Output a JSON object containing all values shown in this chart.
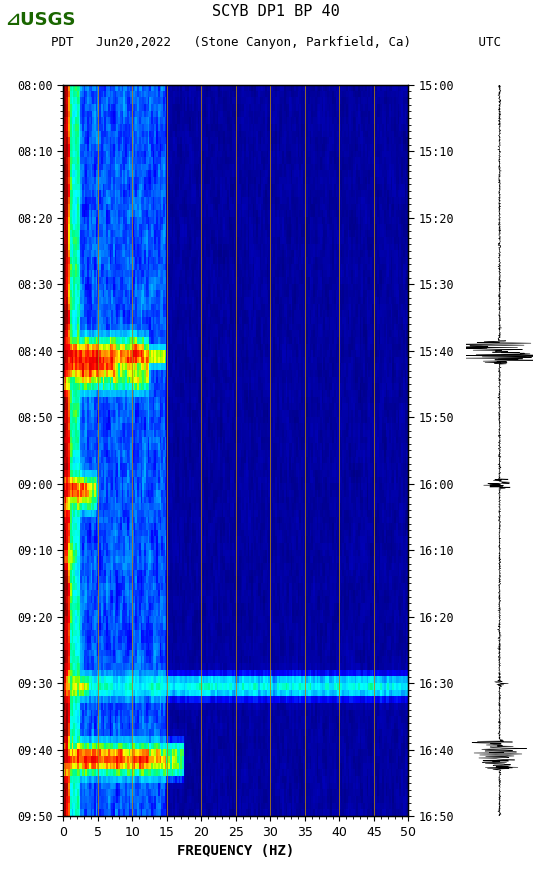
{
  "title_line1": "SCYB DP1 BP 40",
  "title_line2": "PDT   Jun20,2022   (Stone Canyon, Parkfield, Ca)         UTC",
  "xlabel": "FREQUENCY (HZ)",
  "freq_min": 0,
  "freq_max": 50,
  "freq_ticks": [
    0,
    5,
    10,
    15,
    20,
    25,
    30,
    35,
    40,
    45,
    50
  ],
  "time_start_label": "08:00",
  "time_end_label": "09:50",
  "utc_start_label": "15:00",
  "utc_end_label": "16:50",
  "left_time_labels": [
    "08:00",
    "08:10",
    "08:20",
    "08:30",
    "08:40",
    "08:50",
    "09:00",
    "09:10",
    "09:20",
    "09:30",
    "09:40",
    "09:50"
  ],
  "right_time_labels": [
    "15:00",
    "15:10",
    "15:20",
    "15:30",
    "15:40",
    "15:50",
    "16:00",
    "16:10",
    "16:20",
    "16:30",
    "16:40",
    "16:50"
  ],
  "n_time_steps": 110,
  "n_freq_bins": 200,
  "vertical_grid_lines": [
    5,
    10,
    15,
    20,
    25,
    30,
    35,
    40,
    45
  ],
  "background_color": "#000080",
  "fig_bg": "#ffffff",
  "usgs_green": "#1a6600"
}
